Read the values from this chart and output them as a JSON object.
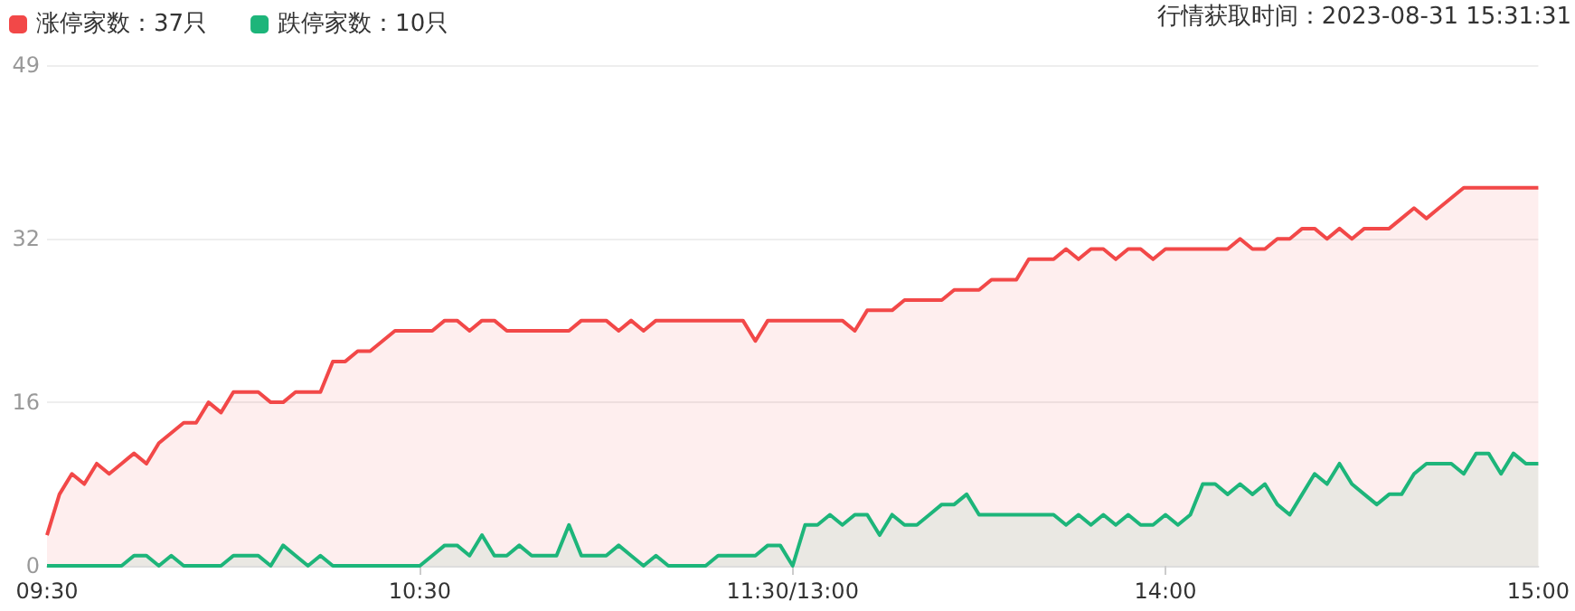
{
  "chart_data": {
    "type": "area",
    "categories": [
      "09:30",
      null,
      null,
      null,
      null,
      null,
      null,
      null,
      null,
      null,
      null,
      null,
      null,
      null,
      null,
      null,
      null,
      null,
      null,
      null,
      null,
      null,
      null,
      null,
      null,
      null,
      null,
      null,
      null,
      null,
      "10:30",
      null,
      null,
      null,
      null,
      null,
      null,
      null,
      null,
      null,
      null,
      null,
      null,
      null,
      null,
      null,
      null,
      null,
      null,
      null,
      null,
      null,
      null,
      null,
      null,
      null,
      null,
      null,
      null,
      null,
      "11:30/13:00",
      null,
      null,
      null,
      null,
      null,
      null,
      null,
      null,
      null,
      null,
      null,
      null,
      null,
      null,
      null,
      null,
      null,
      null,
      null,
      null,
      null,
      null,
      null,
      null,
      null,
      null,
      null,
      null,
      null,
      "14:00",
      null,
      null,
      null,
      null,
      null,
      null,
      null,
      null,
      null,
      null,
      null,
      null,
      null,
      null,
      null,
      null,
      null,
      null,
      null,
      null,
      null,
      null,
      null,
      null,
      null,
      null,
      null,
      null,
      null,
      "15:00"
    ],
    "series": [
      {
        "name": "涨停家数：37只",
        "color": "#f24848",
        "values": [
          3,
          7,
          9,
          8,
          10,
          9,
          10,
          11,
          10,
          12,
          13,
          14,
          14,
          16,
          15,
          17,
          17,
          17,
          16,
          16,
          17,
          17,
          17,
          20,
          20,
          21,
          21,
          22,
          23,
          23,
          23,
          23,
          24,
          24,
          23,
          24,
          24,
          23,
          23,
          23,
          23,
          23,
          23,
          24,
          24,
          24,
          23,
          24,
          23,
          24,
          24,
          24,
          24,
          24,
          24,
          24,
          24,
          22,
          24,
          24,
          24,
          24,
          24,
          24,
          24,
          23,
          25,
          25,
          25,
          26,
          26,
          26,
          26,
          27,
          27,
          27,
          28,
          28,
          28,
          30,
          30,
          30,
          31,
          30,
          31,
          31,
          30,
          31,
          31,
          30,
          31,
          31,
          31,
          31,
          31,
          31,
          32,
          31,
          31,
          32,
          32,
          33,
          33,
          32,
          33,
          32,
          33,
          33,
          33,
          34,
          35,
          34,
          35,
          36,
          37,
          37,
          37,
          37,
          37,
          37,
          37
        ]
      },
      {
        "name": "跌停家数：10只",
        "color": "#1db57a",
        "values": [
          0,
          0,
          0,
          0,
          0,
          0,
          0,
          1,
          1,
          0,
          1,
          0,
          0,
          0,
          0,
          1,
          1,
          1,
          0,
          2,
          1,
          0,
          1,
          0,
          0,
          0,
          0,
          0,
          0,
          0,
          0,
          1,
          2,
          2,
          1,
          3,
          1,
          1,
          2,
          1,
          1,
          1,
          4,
          1,
          1,
          1,
          2,
          1,
          0,
          1,
          0,
          0,
          0,
          0,
          1,
          1,
          1,
          1,
          2,
          2,
          0,
          4,
          4,
          5,
          4,
          5,
          5,
          3,
          5,
          4,
          4,
          5,
          6,
          6,
          7,
          5,
          5,
          5,
          5,
          5,
          5,
          5,
          4,
          5,
          4,
          5,
          4,
          5,
          4,
          4,
          5,
          4,
          5,
          8,
          8,
          7,
          8,
          7,
          8,
          6,
          5,
          7,
          9,
          8,
          10,
          8,
          7,
          6,
          7,
          7,
          9,
          10,
          10,
          10,
          9,
          11,
          11,
          9,
          11,
          10,
          10
        ]
      }
    ],
    "ylim": [
      0,
      49
    ],
    "yticks": [
      0,
      16,
      32,
      49
    ],
    "grid": "y",
    "legend": "top left",
    "annotations": [
      "行情获取时间：2023-08-31 15:31:31"
    ]
  }
}
